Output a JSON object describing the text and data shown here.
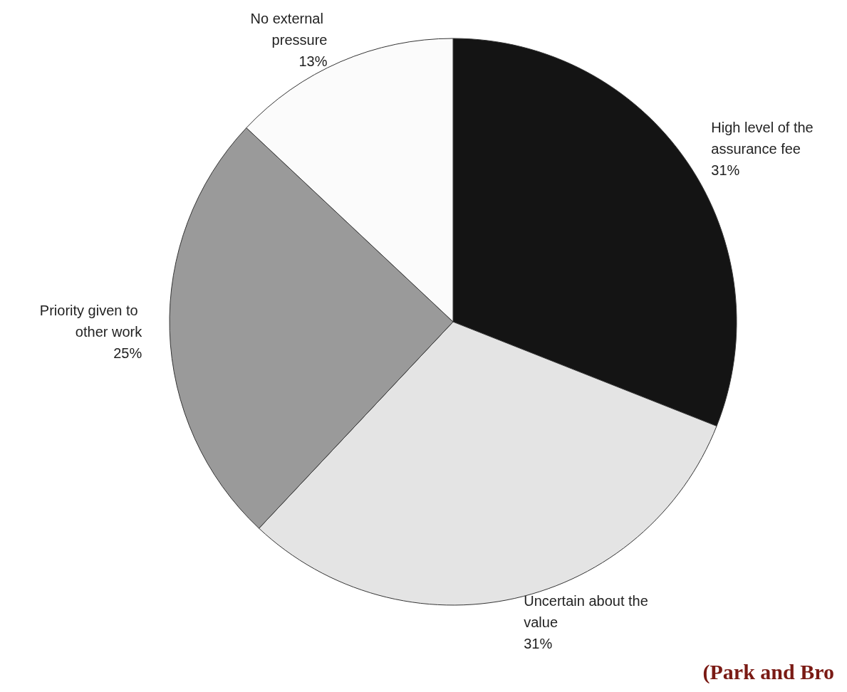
{
  "chart_data": {
    "type": "pie",
    "categories": [
      "High level of the assurance fee",
      "Uncertain about the value",
      "Priority given to other work",
      "No external pressure"
    ],
    "values": [
      31,
      31,
      25,
      13
    ],
    "colors": [
      "#141414",
      "#e4e4e4",
      "#9a9a9a",
      "#fbfbfb"
    ],
    "value_labels": [
      "31%",
      "31%",
      "25%",
      "13%"
    ],
    "legend": false,
    "annotations": [
      "(Park and Bro"
    ]
  }
}
